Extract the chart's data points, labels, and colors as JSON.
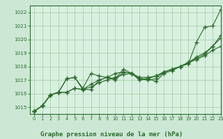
{
  "title": "Graphe pression niveau de la mer (hPa)",
  "background_color": "#cce8d4",
  "plot_bg_color": "#d8f0e0",
  "grid_color": "#aacfaa",
  "line_color": "#2d6a2d",
  "xlim": [
    -0.5,
    23
  ],
  "ylim": [
    1014.5,
    1022.5
  ],
  "yticks": [
    1015,
    1016,
    1017,
    1018,
    1019,
    1020,
    1021,
    1022
  ],
  "xticks": [
    0,
    1,
    2,
    3,
    4,
    5,
    6,
    7,
    8,
    9,
    10,
    11,
    12,
    13,
    14,
    15,
    16,
    17,
    18,
    19,
    20,
    21,
    22,
    23
  ],
  "series": [
    [
      1014.7,
      1015.1,
      1015.9,
      1016.1,
      1017.1,
      1017.2,
      1016.4,
      1017.5,
      1017.3,
      1017.2,
      1017.1,
      1017.8,
      1017.5,
      1017.0,
      1017.1,
      1016.9,
      1017.5,
      1017.7,
      1018.0,
      1018.2,
      1019.8,
      1020.9,
      1021.0,
      1022.2
    ],
    [
      1014.7,
      1015.1,
      1015.9,
      1016.1,
      1016.1,
      1016.4,
      1016.3,
      1016.5,
      1016.8,
      1017.0,
      1017.2,
      1017.4,
      1017.5,
      1017.1,
      1017.1,
      1017.3,
      1017.6,
      1017.8,
      1018.0,
      1018.3,
      1018.5,
      1018.8,
      1019.2,
      1019.5
    ],
    [
      1014.7,
      1015.1,
      1015.9,
      1016.1,
      1016.1,
      1016.4,
      1016.3,
      1016.7,
      1017.0,
      1017.2,
      1017.5,
      1017.6,
      1017.5,
      1017.2,
      1017.2,
      1017.3,
      1017.6,
      1017.8,
      1018.0,
      1018.3,
      1018.6,
      1018.9,
      1019.5,
      1020.1
    ],
    [
      1014.7,
      1015.1,
      1015.9,
      1016.1,
      1017.1,
      1017.2,
      1016.3,
      1016.3,
      1017.0,
      1017.2,
      1017.0,
      1017.6,
      1017.5,
      1017.1,
      1017.0,
      1017.1,
      1017.6,
      1017.8,
      1018.0,
      1018.3,
      1018.7,
      1019.0,
      1019.5,
      1020.3
    ]
  ]
}
